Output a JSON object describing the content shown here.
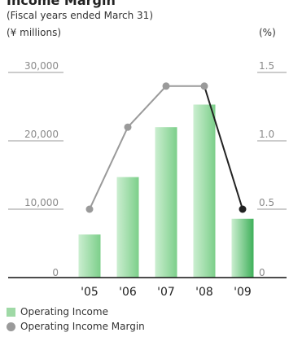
{
  "header": {
    "title": "Income Margin",
    "subtitle": "(Fiscal years ended March 31)",
    "left_unit": "(¥ millions)",
    "right_unit": "(%)"
  },
  "colors": {
    "bar_light": "#cbeed0",
    "bar_dark": "#7ccf8a",
    "bar_last_dark": "#3fb05a",
    "line": "#9a9a9a",
    "line_last_segment": "#222222",
    "point": "#9a9a9a",
    "point_last": "#222222",
    "gridline": "#9a9a9a"
  },
  "legend": {
    "items": [
      {
        "label": "Operating Income",
        "icon": "bar-swatch"
      },
      {
        "label": "Operating Income Margin",
        "icon": "dot-swatch"
      }
    ]
  },
  "chart_data": {
    "type": "bar",
    "categories": [
      "'05",
      "'06",
      "'07",
      "'08",
      "'09"
    ],
    "series": [
      {
        "name": "Operating Income",
        "axis": "left",
        "values": [
          6300,
          14700,
          22000,
          25300,
          8600
        ]
      },
      {
        "name": "Operating Income Margin",
        "type": "line",
        "axis": "right",
        "values": [
          0.5,
          1.1,
          1.4,
          1.4,
          0.5
        ]
      }
    ],
    "left_axis": {
      "ticks": [
        "0",
        "10,000",
        "20,000",
        "30,000"
      ],
      "ylim": [
        0,
        30000
      ]
    },
    "right_axis": {
      "ticks": [
        "0",
        "0.5",
        "1.0",
        "1.5"
      ],
      "ylim": [
        0,
        1.5
      ]
    },
    "grid": true,
    "legend_position": "bottom-left"
  }
}
